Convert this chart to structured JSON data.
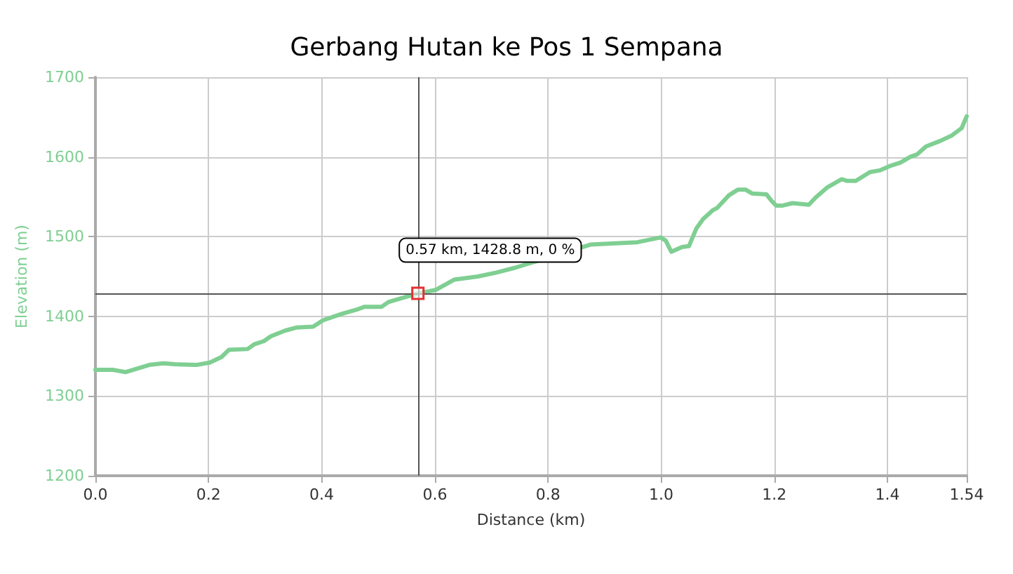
{
  "chart_data": {
    "type": "line",
    "title": "Gerbang Hutan ke Pos 1 Sempana",
    "xlabel": "Distance (km)",
    "ylabel": "Elevation (m)",
    "x": [
      0,
      0.03,
      0.053,
      0.095,
      0.12,
      0.14,
      0.178,
      0.202,
      0.223,
      0.236,
      0.269,
      0.281,
      0.298,
      0.31,
      0.335,
      0.356,
      0.385,
      0.402,
      0.435,
      0.46,
      0.476,
      0.506,
      0.518,
      0.57,
      0.601,
      0.634,
      0.676,
      0.709,
      0.742,
      0.875,
      0.958,
      0.999,
      1.008,
      1.018,
      1.037,
      1.049,
      1.062,
      1.074,
      1.091,
      1.099,
      1.12,
      1.136,
      1.149,
      1.161,
      1.186,
      1.195,
      1.203,
      1.215,
      1.232,
      1.261,
      1.273,
      1.294,
      1.319,
      1.328,
      1.344,
      1.369,
      1.386,
      1.406,
      1.423,
      1.44,
      1.452,
      1.468,
      1.493,
      1.514,
      1.531,
      1.54
    ],
    "series": [
      {
        "color": "#7fcf92",
        "values": [
          1333,
          1333,
          1330,
          1339,
          1341,
          1340,
          1339,
          1342,
          1349,
          1358,
          1359,
          1365,
          1369,
          1375,
          1382,
          1386,
          1387,
          1395,
          1403,
          1408,
          1412,
          1412,
          1418,
          1428.8,
          1433,
          1446,
          1450,
          1455,
          1461,
          1490,
          1493,
          1499,
          1495,
          1481,
          1487,
          1488,
          1510,
          1522,
          1533,
          1536,
          1552,
          1559,
          1559,
          1554,
          1553,
          1545,
          1539,
          1539,
          1542,
          1540,
          1549,
          1562,
          1572,
          1570,
          1570,
          1581,
          1583,
          1589,
          1593,
          1600,
          1603,
          1613,
          1620,
          1627,
          1636,
          1651
        ]
      }
    ],
    "xlim": [
      0,
      1.54
    ],
    "xticks": [
      {
        "value": 0,
        "label": "0.0"
      },
      0.2,
      0.4,
      0.6,
      0.8,
      {
        "value": 1,
        "label": "1.0"
      },
      1.2,
      1.4,
      1.54
    ],
    "ylim": [
      1200,
      1700
    ],
    "yticks": [
      1200,
      1300,
      1400,
      1500,
      1600,
      1700
    ],
    "ref_lines": [
      {
        "axis": "x",
        "value": 0.57,
        "color": "#555555"
      },
      {
        "axis": "y",
        "value": 1428.8,
        "color": "#555555"
      }
    ],
    "annotations": [
      {
        "text": "0.57 km, 1428.8 m, 0 %",
        "x": 0.57,
        "y": 1428.8
      }
    ],
    "grid": true,
    "marker": "none",
    "line_style": "solid"
  }
}
